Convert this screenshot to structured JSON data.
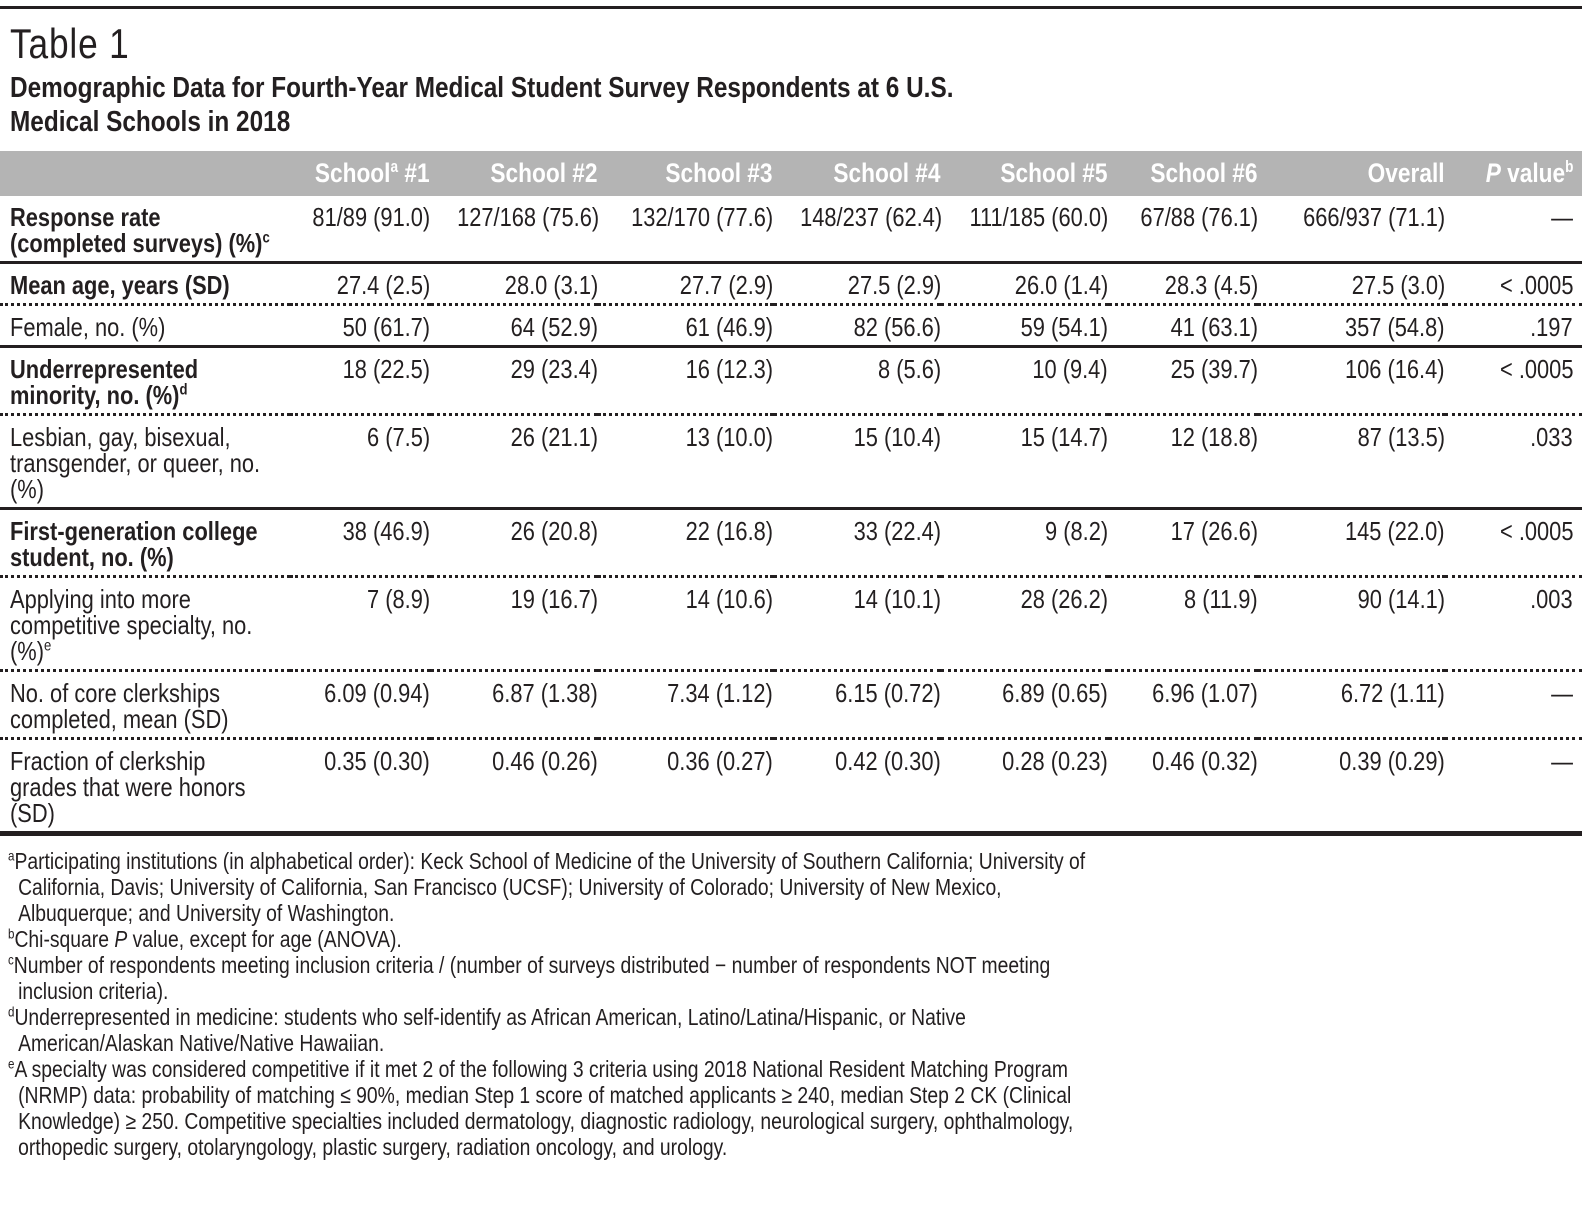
{
  "colors": {
    "header_bar_bg": "#b4b4b4",
    "header_bar_text": "#ffffff",
    "body_text": "#231f20",
    "rule": "#231f20"
  },
  "header": {
    "table_label": "Table 1",
    "title": "Demographic Data for Fourth-Year Medical Student Survey Respondents at 6 U.S. Medical Schools in 2018"
  },
  "table": {
    "columns": [
      {
        "label": "School",
        "sup": "a",
        "suffix": " #1"
      },
      {
        "label": "School #2"
      },
      {
        "label": "School #3"
      },
      {
        "label": "School #4"
      },
      {
        "label": "School #5"
      },
      {
        "label": "School #6"
      },
      {
        "label": "Overall"
      },
      {
        "italic": "P",
        "label": " value",
        "sup": "b"
      }
    ],
    "rows": [
      {
        "label": "Response rate (completed surveys) (%)",
        "sup": "c",
        "bold": true,
        "sep": "none",
        "values": [
          "81/89 (91.0)",
          "127/168 (75.6)",
          "132/170 (77.6)",
          "148/237 (62.4)",
          "111/185 (60.0)",
          "67/88 (76.1)",
          "666/937 (71.1)",
          "—"
        ]
      },
      {
        "label": "Mean age, years (SD)",
        "bold": true,
        "sep": "solid",
        "values": [
          "27.4 (2.5)",
          "28.0 (3.1)",
          "27.7 (2.9)",
          "27.5 (2.9)",
          "26.0 (1.4)",
          "28.3 (4.5)",
          "27.5 (3.0)",
          "< .0005"
        ]
      },
      {
        "label": "Female, no. (%)",
        "bold": false,
        "sep": "dotted",
        "values": [
          "50 (61.7)",
          "64 (52.9)",
          "61 (46.9)",
          "82 (56.6)",
          "59 (54.1)",
          "41 (63.1)",
          "357 (54.8)",
          ".197"
        ]
      },
      {
        "label": "Underrepresented minority, no. (%)",
        "sup": "d",
        "bold": true,
        "sep": "solid",
        "values": [
          "18 (22.5)",
          "29 (23.4)",
          "16 (12.3)",
          "8 (5.6)",
          "10 (9.4)",
          "25 (39.7)",
          "106 (16.4)",
          "< .0005"
        ]
      },
      {
        "label": "Lesbian, gay, bisexual, transgender, or queer, no. (%)",
        "bold": false,
        "sep": "dotted",
        "values": [
          "6 (7.5)",
          "26 (21.1)",
          "13 (10.0)",
          "15 (10.4)",
          "15 (14.7)",
          "12 (18.8)",
          "87 (13.5)",
          ".033"
        ]
      },
      {
        "label": "First-generation college student, no. (%)",
        "bold": true,
        "sep": "solid",
        "values": [
          "38 (46.9)",
          "26 (20.8)",
          "22 (16.8)",
          "33 (22.4)",
          "9 (8.2)",
          "17 (26.6)",
          "145 (22.0)",
          "< .0005"
        ]
      },
      {
        "label": "Applying into more competitive specialty, no. (%)",
        "sup": "e",
        "bold": false,
        "sep": "dotted",
        "values": [
          "7 (8.9)",
          "19 (16.7)",
          "14 (10.6)",
          "14 (10.1)",
          "28 (26.2)",
          "8 (11.9)",
          "90 (14.1)",
          ".003"
        ]
      },
      {
        "label": "No. of core clerkships completed, mean (SD)",
        "bold": false,
        "sep": "dotted",
        "values": [
          "6.09 (0.94)",
          "6.87 (1.38)",
          "7.34 (1.12)",
          "6.15 (0.72)",
          "6.89 (0.65)",
          "6.96 (1.07)",
          "6.72 (1.11)",
          "—"
        ]
      },
      {
        "label": "Fraction of clerkship grades that were honors (SD)",
        "bold": false,
        "sep": "dotted",
        "values": [
          "0.35 (0.30)",
          "0.46 (0.26)",
          "0.36 (0.27)",
          "0.42 (0.30)",
          "0.28 (0.23)",
          "0.46 (0.32)",
          "0.39 (0.29)",
          "—"
        ]
      }
    ]
  },
  "footnotes": [
    {
      "sup": "a",
      "parts": [
        {
          "text": "Participating institutions (in alphabetical order): Keck School of Medicine of the University of Southern California; University of California, Davis; University of California, San Francisco (UCSF); University of Colorado; University of New Mexico, Albuquerque; and University of Washington."
        }
      ]
    },
    {
      "sup": "b",
      "parts": [
        {
          "text": "Chi-square "
        },
        {
          "text": "P",
          "italic": true
        },
        {
          "text": " value, except for age (ANOVA)."
        }
      ]
    },
    {
      "sup": "c",
      "parts": [
        {
          "text": "Number of respondents meeting inclusion criteria / (number of surveys distributed − number of respondents NOT meeting inclusion criteria)."
        }
      ]
    },
    {
      "sup": "d",
      "parts": [
        {
          "text": "Underrepresented in medicine: students who self-identify as African American, Latino/Latina/Hispanic, or Native American/Alaskan Native/Native Hawaiian."
        }
      ]
    },
    {
      "sup": "e",
      "parts": [
        {
          "text": "A specialty was considered competitive if it met 2 of the following 3 criteria using 2018 National Resident Matching Program (NRMP) data: probability of matching ≤ 90%, median Step 1 score of matched applicants ≥ 240, median Step 2 CK (Clinical Knowledge) ≥ 250. Competitive specialties included dermatology, diagnostic radiology, neurological surgery, ophthalmology, orthopedic surgery, otolaryngology, plastic surgery, radiation oncology, and urology."
        }
      ]
    }
  ]
}
